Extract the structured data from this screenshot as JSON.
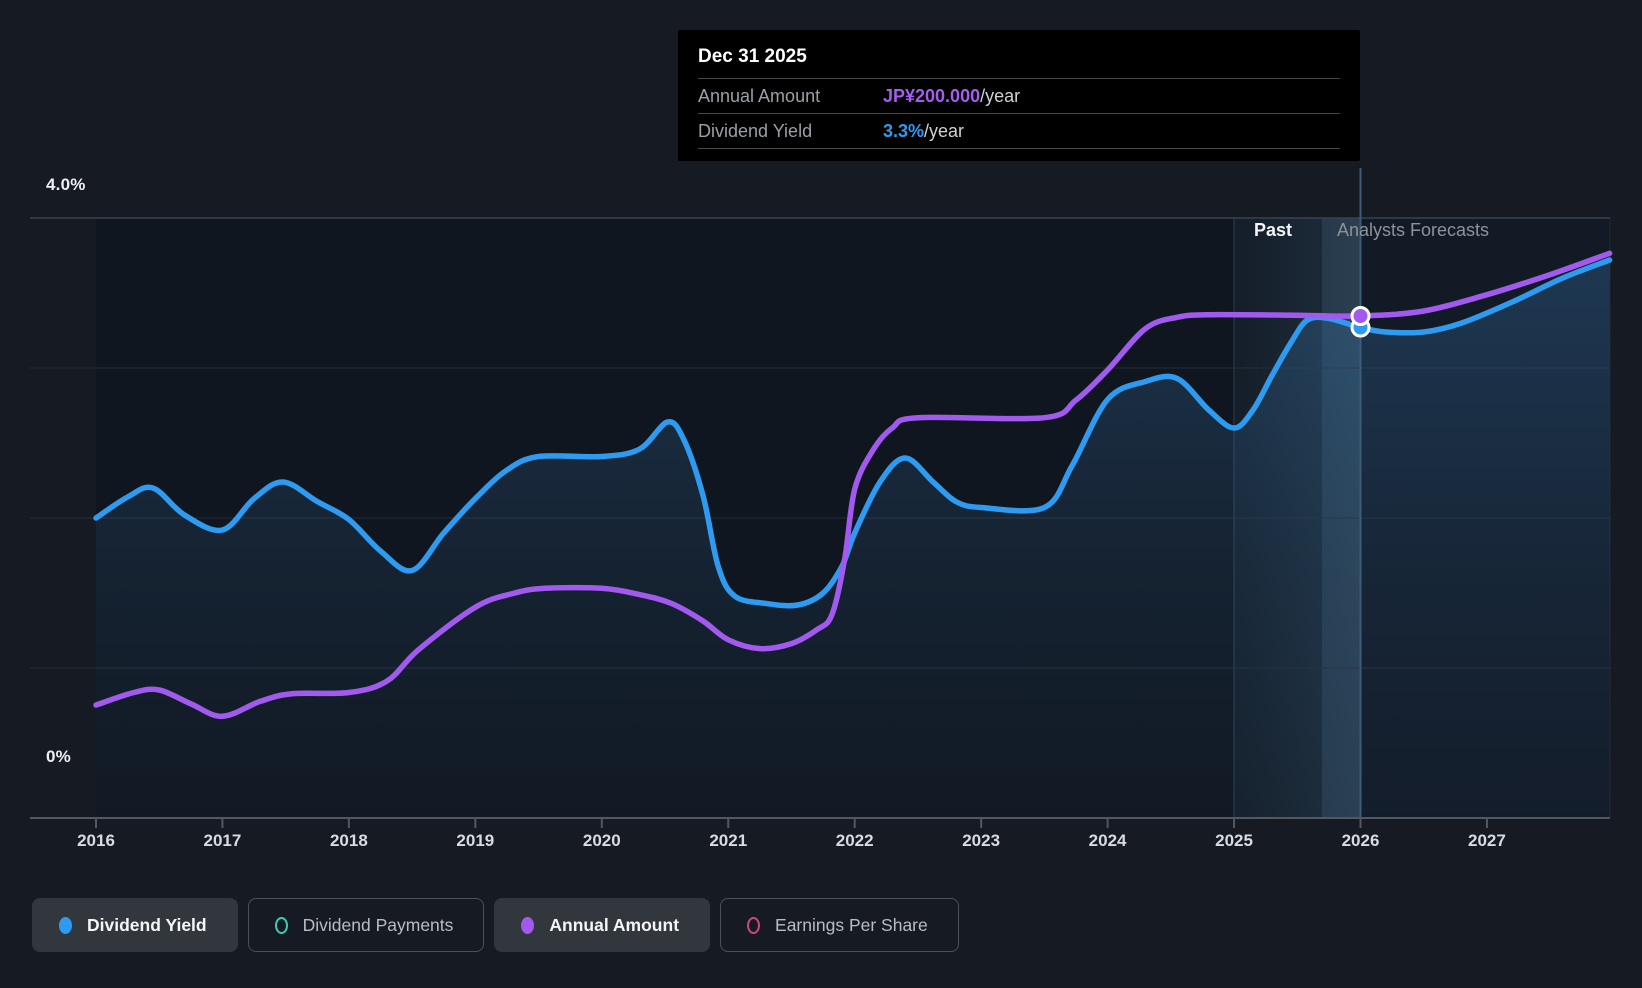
{
  "tooltip": {
    "date": "Dec 31 2025",
    "rows": [
      {
        "label": "Annual Amount",
        "value": "JP¥200.000",
        "suffix": "/year",
        "color": "#a55cf0"
      },
      {
        "label": "Dividend Yield",
        "value": "3.3%",
        "suffix": "/year",
        "color": "#2e9bf0"
      }
    ]
  },
  "axis": {
    "y_top_label": "4.0%",
    "y_bottom_label": "0%",
    "x_labels": [
      "2016",
      "2017",
      "2018",
      "2019",
      "2020",
      "2021",
      "2022",
      "2023",
      "2024",
      "2025",
      "2026",
      "2027"
    ]
  },
  "annotations": {
    "past": "Past",
    "forecast": "Analysts Forecasts"
  },
  "legend": [
    {
      "label": "Dividend Yield",
      "style": "filled",
      "color": "#2e9bf0",
      "active": true
    },
    {
      "label": "Dividend Payments",
      "style": "ring",
      "color": "#43c8b4",
      "active": false
    },
    {
      "label": "Annual Amount",
      "style": "filled",
      "color": "#a259ee",
      "active": true
    },
    {
      "label": "Earnings Per Share",
      "style": "ring",
      "color": "#c9497f",
      "active": false
    }
  ],
  "chart_data": {
    "type": "line",
    "title": "Dividend history and forecast",
    "x_range": [
      2016,
      2028
    ],
    "y_axis_percent": {
      "min": 0,
      "max": 4.0,
      "gridlines": [
        0,
        1,
        2,
        3,
        4
      ],
      "shown_tick_labels": [
        "0%",
        "4.0%"
      ]
    },
    "divider_x": 2026.0,
    "past_region": [
      2016,
      2026
    ],
    "forecast_region": [
      2026,
      2028
    ],
    "highlight_band": [
      2025,
      2026
    ],
    "marker": {
      "x": 2026.0,
      "date": "Dec 31 2025",
      "dividend_yield_percent": 3.27,
      "annual_amount_yen": 200
    },
    "series": [
      {
        "name": "Dividend Yield",
        "unit": "percent",
        "color": "#2e9bf0",
        "points": [
          [
            2016.0,
            2.0
          ],
          [
            2016.25,
            2.14
          ],
          [
            2016.45,
            2.2
          ],
          [
            2016.7,
            2.02
          ],
          [
            2017.0,
            1.92
          ],
          [
            2017.25,
            2.13
          ],
          [
            2017.48,
            2.24
          ],
          [
            2017.75,
            2.11
          ],
          [
            2018.0,
            1.99
          ],
          [
            2018.25,
            1.78
          ],
          [
            2018.5,
            1.65
          ],
          [
            2018.75,
            1.9
          ],
          [
            2019.0,
            2.13
          ],
          [
            2019.25,
            2.32
          ],
          [
            2019.5,
            2.41
          ],
          [
            2020.0,
            2.41
          ],
          [
            2020.3,
            2.46
          ],
          [
            2020.52,
            2.64
          ],
          [
            2020.65,
            2.52
          ],
          [
            2020.8,
            2.15
          ],
          [
            2020.92,
            1.68
          ],
          [
            2021.05,
            1.48
          ],
          [
            2021.3,
            1.43
          ],
          [
            2021.55,
            1.42
          ],
          [
            2021.75,
            1.5
          ],
          [
            2021.9,
            1.68
          ],
          [
            2022.0,
            1.9
          ],
          [
            2022.2,
            2.24
          ],
          [
            2022.4,
            2.4
          ],
          [
            2022.62,
            2.24
          ],
          [
            2022.8,
            2.11
          ],
          [
            2023.0,
            2.07
          ],
          [
            2023.5,
            2.07
          ],
          [
            2023.72,
            2.35
          ],
          [
            2024.0,
            2.79
          ],
          [
            2024.3,
            2.91
          ],
          [
            2024.55,
            2.93
          ],
          [
            2024.8,
            2.72
          ],
          [
            2025.0,
            2.6
          ],
          [
            2025.15,
            2.72
          ],
          [
            2025.3,
            2.95
          ],
          [
            2025.45,
            3.17
          ],
          [
            2025.58,
            3.32
          ],
          [
            2025.75,
            3.33
          ],
          [
            2026.0,
            3.27
          ],
          [
            2026.2,
            3.24
          ],
          [
            2026.5,
            3.24
          ],
          [
            2026.8,
            3.3
          ],
          [
            2027.2,
            3.44
          ],
          [
            2027.6,
            3.6
          ],
          [
            2027.97,
            3.72
          ]
        ]
      },
      {
        "name": "Annual Amount",
        "unit": "yen",
        "color": "#a259ee",
        "points": [
          [
            2016.0,
            45
          ],
          [
            2016.3,
            50
          ],
          [
            2016.5,
            51
          ],
          [
            2016.75,
            45.5
          ],
          [
            2017.0,
            40.5
          ],
          [
            2017.3,
            46.5
          ],
          [
            2017.55,
            49.5
          ],
          [
            2018.0,
            50
          ],
          [
            2018.3,
            54.5
          ],
          [
            2018.55,
            67
          ],
          [
            2019.0,
            84
          ],
          [
            2019.3,
            89.5
          ],
          [
            2019.55,
            91.5
          ],
          [
            2020.0,
            91.5
          ],
          [
            2020.3,
            89
          ],
          [
            2020.55,
            85.5
          ],
          [
            2020.8,
            78.5
          ],
          [
            2021.0,
            71
          ],
          [
            2021.25,
            67.5
          ],
          [
            2021.5,
            69.5
          ],
          [
            2021.7,
            75
          ],
          [
            2021.82,
            81
          ],
          [
            2021.92,
            103
          ],
          [
            2022.0,
            131
          ],
          [
            2022.15,
            147
          ],
          [
            2022.3,
            155.5
          ],
          [
            2022.5,
            159.5
          ],
          [
            2023.5,
            159.5
          ],
          [
            2023.75,
            166.5
          ],
          [
            2024.0,
            178.5
          ],
          [
            2024.3,
            195
          ],
          [
            2024.55,
            199.5
          ],
          [
            2024.8,
            200.5
          ],
          [
            2025.5,
            200.3
          ],
          [
            2026.0,
            200
          ],
          [
            2026.5,
            202
          ],
          [
            2027.0,
            208.5
          ],
          [
            2027.5,
            216.5
          ],
          [
            2027.97,
            225
          ]
        ]
      }
    ]
  },
  "colors": {
    "page_bg": "#161a23",
    "plot_bg_past": "#10161f",
    "plot_bg_forecast": "#121a26",
    "area_fill": "#3a7cb8",
    "divider_line": "#3c5c77",
    "gridline_top": "#3b424c",
    "gridline": "#262c35",
    "axis_line": "#53585f"
  }
}
